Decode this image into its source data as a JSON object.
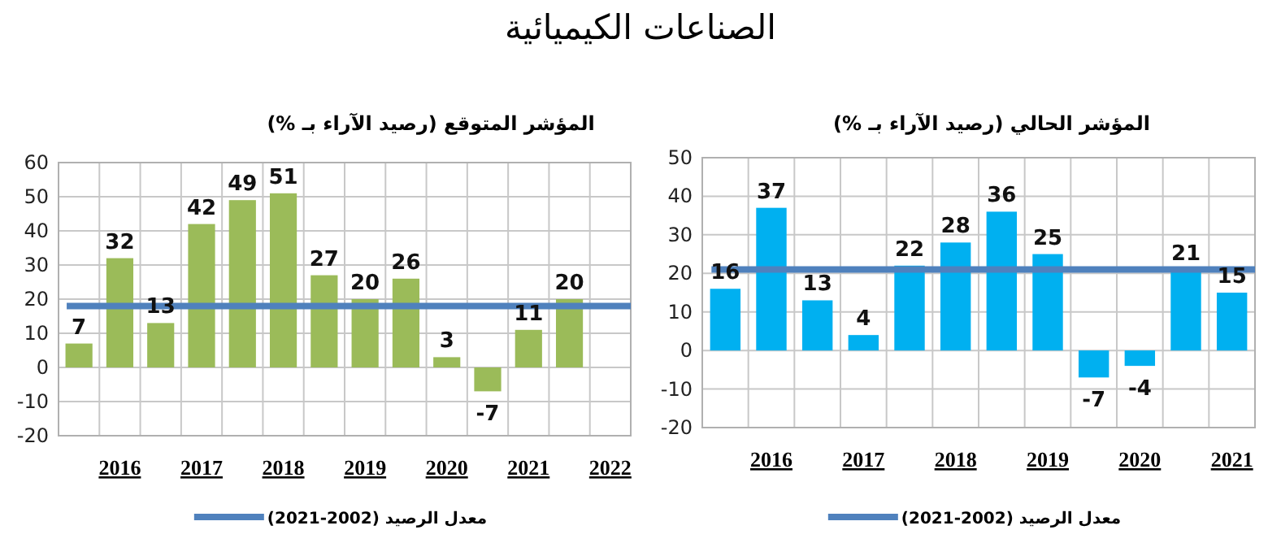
{
  "chart_data": [
    {
      "type": "bar",
      "title": "المؤشر المتوقع (رصيد الآراء بـ %)",
      "annotations": [
        "الصناعات الكيميائية"
      ],
      "categories": [
        null,
        "2016",
        null,
        "2017",
        null,
        "2018",
        null,
        "2019",
        null,
        "2020",
        null,
        "2021",
        null,
        "2022"
      ],
      "series": [
        {
          "color": "#9bbb59",
          "values": [
            7,
            32,
            13,
            42,
            49,
            51,
            27,
            20,
            26,
            3,
            -7,
            11,
            20,
            null
          ]
        }
      ],
      "ylim": [
        -20,
        60
      ],
      "yticks": [
        -20,
        -10,
        0,
        10,
        20,
        30,
        40,
        50,
        60
      ],
      "grid": true,
      "data_labels": true,
      "legend": "bottom",
      "ref_lines": [
        {
          "axis": "y",
          "value": 18,
          "label": "معدل الرصيد (2002-2021)",
          "color": "#4f81bd"
        }
      ]
    },
    {
      "type": "bar",
      "title": "المؤشر الحالي (رصيد الآراء بـ %)",
      "categories": [
        null,
        "2016",
        null,
        "2017",
        null,
        "2018",
        null,
        "2019",
        null,
        "2020",
        null,
        "2021"
      ],
      "series": [
        {
          "color": "#00b0f0",
          "values": [
            16,
            37,
            13,
            4,
            22,
            28,
            36,
            25,
            -7,
            -4,
            21,
            15
          ]
        }
      ],
      "ylim": [
        -20,
        50
      ],
      "yticks": [
        -20,
        -10,
        0,
        10,
        20,
        30,
        40,
        50
      ],
      "grid": true,
      "data_labels": true,
      "legend": "bottom",
      "ref_lines": [
        {
          "axis": "y",
          "value": 21,
          "label": "معدل الرصيد (2002-2021)",
          "color": "#4f81bd"
        }
      ]
    }
  ]
}
